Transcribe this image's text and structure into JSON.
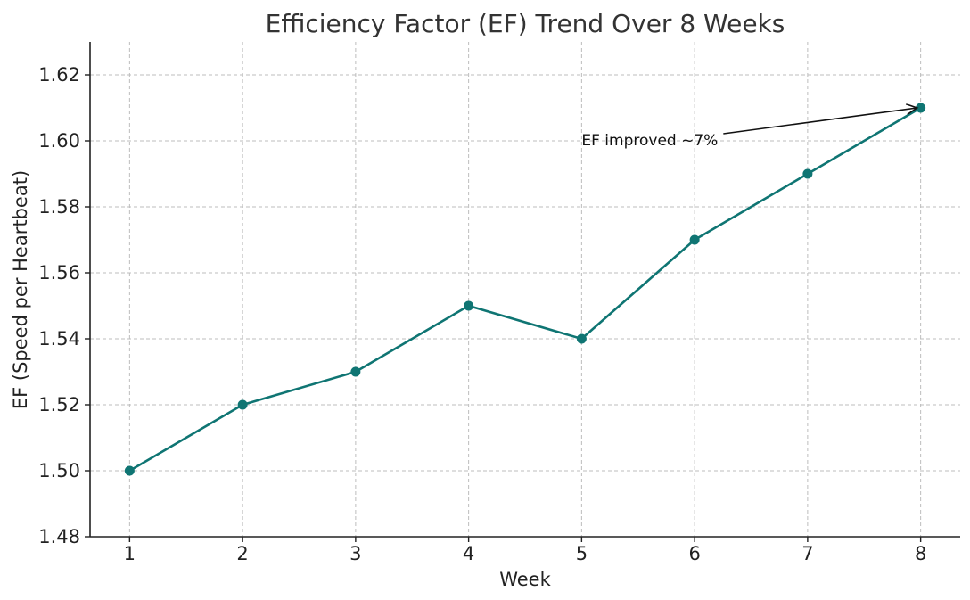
{
  "chart_data": {
    "type": "line",
    "title": "Efficiency Factor (EF) Trend Over 8 Weeks",
    "xlabel": "Week",
    "ylabel": "EF (Speed per Heartbeat)",
    "x": [
      1,
      2,
      3,
      4,
      5,
      6,
      7,
      8
    ],
    "series": [
      {
        "values": [
          1.5,
          1.52,
          1.53,
          1.55,
          1.54,
          1.57,
          1.59,
          1.61
        ],
        "color": "#0f7573"
      }
    ],
    "xlim": [
      0.65,
      8.35
    ],
    "ylim": [
      1.48,
      1.63
    ],
    "xticks": [
      1,
      2,
      3,
      4,
      5,
      6,
      7,
      8
    ],
    "yticks": [
      1.48,
      1.5,
      1.52,
      1.54,
      1.56,
      1.58,
      1.6,
      1.62
    ],
    "ytick_labels": [
      "1.48",
      "1.50",
      "1.52",
      "1.54",
      "1.56",
      "1.58",
      "1.60",
      "1.62"
    ],
    "grid": true,
    "annotations": [
      {
        "text": "EF improved ~7%",
        "text_x": 5,
        "text_y": 1.6,
        "arrow_to_x": 8,
        "arrow_to_y": 1.61
      }
    ]
  }
}
